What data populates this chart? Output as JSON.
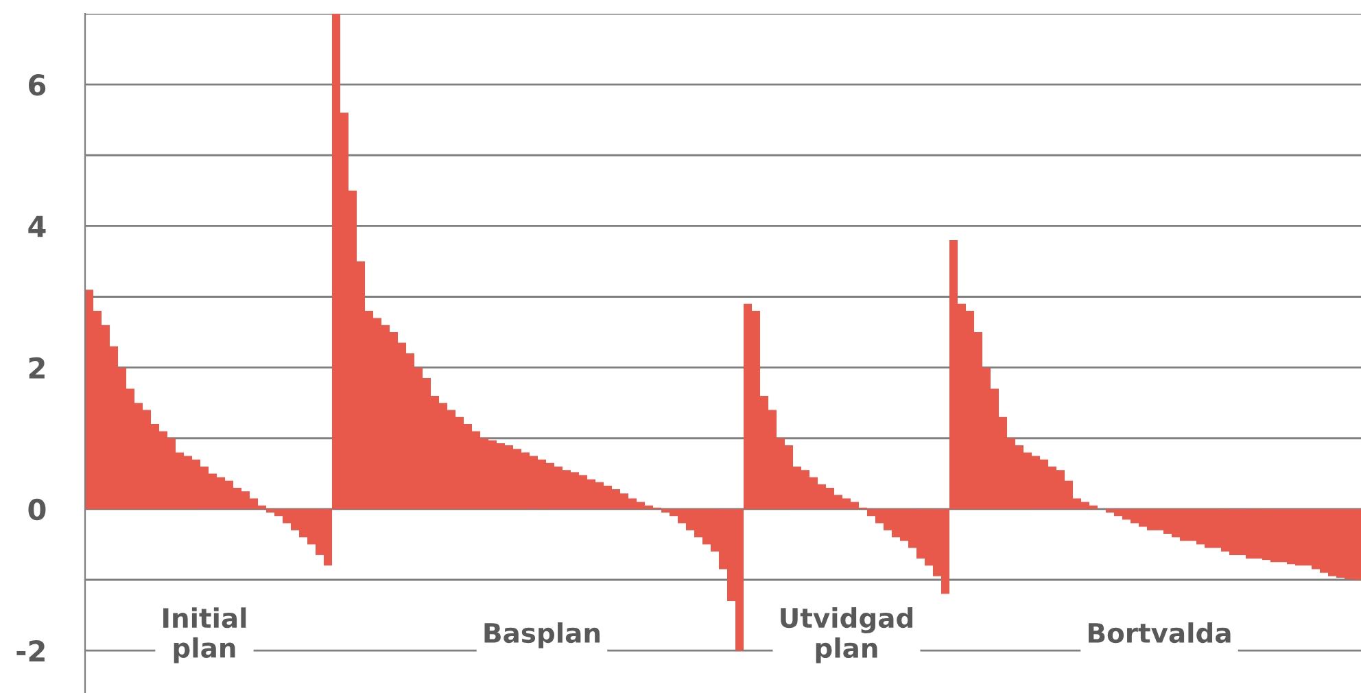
{
  "chart_data": {
    "type": "bar",
    "categories": [
      null,
      null,
      null,
      null,
      null,
      null,
      null,
      null,
      null,
      null,
      null,
      null,
      null,
      null,
      "Initial plan",
      null,
      null,
      null,
      null,
      null,
      null,
      null,
      null,
      null,
      null,
      null,
      null,
      null,
      null,
      null,
      null,
      null,
      null,
      null,
      null,
      null,
      null,
      null,
      null,
      null,
      null,
      null,
      null,
      null,
      null,
      null,
      null,
      null,
      null,
      null,
      null,
      null,
      null,
      null,
      null,
      "Basplan",
      null,
      null,
      null,
      null,
      null,
      null,
      null,
      null,
      null,
      null,
      null,
      null,
      null,
      null,
      null,
      null,
      null,
      null,
      null,
      null,
      null,
      null,
      null,
      null,
      null,
      null,
      null,
      null,
      null,
      null,
      null,
      null,
      null,
      null,
      null,
      null,
      "Utvidgad plan",
      null,
      null,
      null,
      null,
      null,
      null,
      null,
      null,
      null,
      null,
      null,
      null,
      null,
      null,
      null,
      null,
      null,
      null,
      null,
      null,
      null,
      null,
      null,
      null,
      null,
      null,
      null,
      null,
      null,
      null,
      null,
      null,
      null,
      null,
      null,
      null,
      null,
      "Bortvalda",
      null,
      null,
      null,
      null,
      null,
      null,
      null,
      null,
      null,
      null,
      null,
      null,
      null,
      null,
      null,
      null,
      null,
      null,
      null,
      null,
      null,
      null,
      null,
      null
    ],
    "values": [
      3.1,
      2.8,
      2.6,
      2.3,
      2.0,
      1.7,
      1.5,
      1.4,
      1.2,
      1.1,
      1.0,
      0.8,
      0.75,
      0.7,
      0.6,
      0.5,
      0.45,
      0.4,
      0.3,
      0.25,
      0.15,
      0.05,
      -0.05,
      -0.1,
      -0.2,
      -0.3,
      -0.4,
      -0.5,
      -0.65,
      -0.8,
      7.0,
      5.6,
      4.5,
      3.5,
      2.8,
      2.7,
      2.6,
      2.5,
      2.35,
      2.2,
      2.0,
      1.85,
      1.6,
      1.5,
      1.4,
      1.3,
      1.2,
      1.1,
      1.0,
      0.97,
      0.93,
      0.9,
      0.85,
      0.8,
      0.75,
      0.7,
      0.65,
      0.6,
      0.55,
      0.52,
      0.48,
      0.42,
      0.38,
      0.33,
      0.28,
      0.22,
      0.15,
      0.1,
      0.05,
      0.02,
      -0.05,
      -0.1,
      -0.2,
      -0.3,
      -0.4,
      -0.5,
      -0.6,
      -0.85,
      -1.3,
      -2.0,
      2.9,
      2.8,
      1.6,
      1.4,
      1.0,
      0.9,
      0.6,
      0.55,
      0.45,
      0.35,
      0.3,
      0.2,
      0.15,
      0.1,
      0.02,
      -0.1,
      -0.2,
      -0.3,
      -0.4,
      -0.45,
      -0.55,
      -0.7,
      -0.8,
      -0.95,
      -1.2,
      3.8,
      2.9,
      2.8,
      2.5,
      2.0,
      1.7,
      1.3,
      1.0,
      0.9,
      0.8,
      0.75,
      0.7,
      0.6,
      0.55,
      0.4,
      0.15,
      0.1,
      0.05,
      0.0,
      -0.05,
      -0.1,
      -0.15,
      -0.2,
      -0.25,
      -0.3,
      -0.3,
      -0.35,
      -0.4,
      -0.45,
      -0.45,
      -0.5,
      -0.55,
      -0.55,
      -0.6,
      -0.65,
      -0.65,
      -0.7,
      -0.7,
      -0.72,
      -0.75,
      -0.75,
      -0.78,
      -0.8,
      -0.8,
      -0.85,
      -0.9,
      -0.95,
      -0.97,
      -0.99,
      -1.0
    ],
    "color": "#e8594b",
    "ylim": [
      -2.6,
      7
    ],
    "yticks": [
      {
        "value": -2,
        "label": "-2"
      },
      {
        "value": -1,
        "label": null
      },
      0,
      {
        "value": 1,
        "label": null
      },
      2,
      {
        "value": 3,
        "label": null
      },
      4,
      {
        "value": 5,
        "label": null
      },
      6,
      {
        "value": 7,
        "label": null
      }
    ],
    "grid": "y"
  }
}
